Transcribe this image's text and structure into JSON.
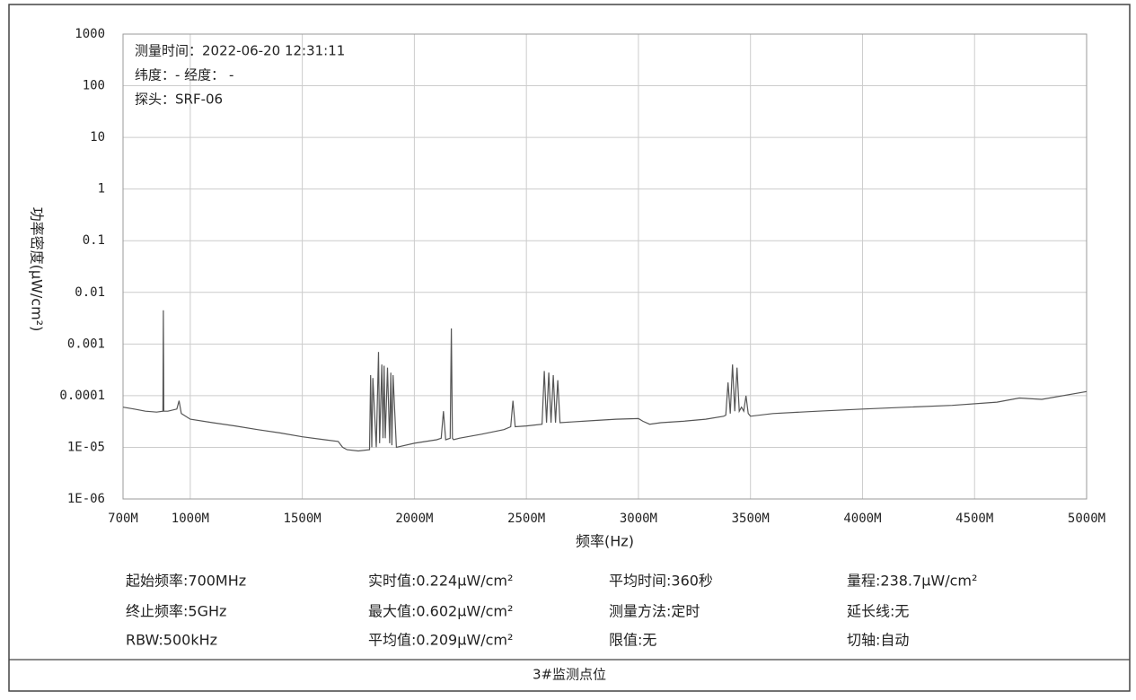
{
  "chart_data": {
    "type": "line",
    "annotations": [
      "测量时间：2022-06-20 12:31:11",
      "纬度：- 经度： -",
      "探头：SRF-06"
    ],
    "ylabel": "功率密度(μW/cm²)",
    "xlabel": "频率(Hz)",
    "x": [
      700,
      750,
      800,
      850,
      878,
      880,
      882,
      900,
      940,
      950,
      960,
      1000,
      1100,
      1200,
      1300,
      1400,
      1500,
      1600,
      1660,
      1680,
      1700,
      1750,
      1800,
      1805,
      1810,
      1815,
      1830,
      1840,
      1845,
      1855,
      1860,
      1865,
      1870,
      1880,
      1890,
      1895,
      1900,
      1905,
      1920,
      2000,
      2100,
      2120,
      2130,
      2140,
      2160,
      2165,
      2170,
      2175,
      2200,
      2300,
      2400,
      2430,
      2440,
      2450,
      2500,
      2570,
      2580,
      2590,
      2600,
      2610,
      2620,
      2630,
      2640,
      2650,
      2700,
      2800,
      2900,
      3000,
      3020,
      3050,
      3100,
      3200,
      3300,
      3380,
      3390,
      3400,
      3410,
      3420,
      3430,
      3440,
      3450,
      3460,
      3470,
      3480,
      3490,
      3500,
      3600,
      3800,
      4000,
      4200,
      4400,
      4600,
      4700,
      4800,
      5000
    ],
    "values": [
      6e-05,
      5.5e-05,
      5e-05,
      4.8e-05,
      5e-05,
      0.0045,
      5e-05,
      5e-05,
      5.5e-05,
      8e-05,
      4.5e-05,
      3.5e-05,
      3e-05,
      2.6e-05,
      2.2e-05,
      1.9e-05,
      1.6e-05,
      1.4e-05,
      1.3e-05,
      1e-05,
      9e-06,
      8.5e-06,
      9e-06,
      0.00025,
      1e-05,
      0.00022,
      1e-05,
      0.0007,
      1.2e-05,
      0.0004,
      1.5e-05,
      0.00038,
      1.5e-05,
      0.00035,
      1.2e-05,
      0.00028,
      1.1e-05,
      0.00025,
      1e-05,
      1.2e-05,
      1.4e-05,
      1.5e-05,
      5e-05,
      1.4e-05,
      1.5e-05,
      0.002,
      1.5e-05,
      1.4e-05,
      1.5e-05,
      1.8e-05,
      2.2e-05,
      2.5e-05,
      8e-05,
      2.5e-05,
      2.6e-05,
      2.8e-05,
      0.0003,
      3e-05,
      0.00028,
      3e-05,
      0.00025,
      3e-05,
      0.0002,
      3e-05,
      3.1e-05,
      3.3e-05,
      3.5e-05,
      3.6e-05,
      3.2e-05,
      2.8e-05,
      3e-05,
      3.2e-05,
      3.5e-05,
      4e-05,
      4.2e-05,
      0.00018,
      4.5e-05,
      0.0004,
      5e-05,
      0.00035,
      5e-05,
      6e-05,
      5e-05,
      0.0001,
      4.5e-05,
      4e-05,
      4.5e-05,
      5e-05,
      5.5e-05,
      6e-05,
      6.5e-05,
      7.5e-05,
      9e-05,
      8.5e-05,
      0.00012
    ],
    "color": "#555555",
    "xlim": [
      700,
      5000
    ],
    "xticks": [
      {
        "value": 700,
        "label": "700M"
      },
      {
        "value": 1000,
        "label": "1000M"
      },
      {
        "value": 1500,
        "label": "1500M"
      },
      {
        "value": 2000,
        "label": "2000M"
      },
      {
        "value": 2500,
        "label": "2500M"
      },
      {
        "value": 3000,
        "label": "3000M"
      },
      {
        "value": 3500,
        "label": "3500M"
      },
      {
        "value": 4000,
        "label": "4000M"
      },
      {
        "value": 4500,
        "label": "4500M"
      },
      {
        "value": 5000,
        "label": "5000M"
      }
    ],
    "ylim": [
      1e-06,
      1000
    ],
    "yscale": "log",
    "yticks": [
      1000,
      100,
      10,
      1,
      0.1,
      0.01,
      0.001,
      0.0001,
      {
        "value": 1e-05,
        "label": "1E-05"
      },
      {
        "value": 1e-06,
        "label": "1E-06"
      }
    ],
    "grid": true
  },
  "info": [
    [
      "起始频率:700MHz",
      "实时值:0.224μW/cm²",
      "平均时间:360秒",
      "量程:238.7μW/cm²"
    ],
    [
      "终止频率:5GHz",
      "最大值:0.602μW/cm²",
      "测量方法:定时",
      "延长线:无"
    ],
    [
      "RBW:500kHz",
      "平均值:0.209μW/cm²",
      "限值:无",
      "切轴:自动"
    ]
  ],
  "footer": "3#监测点位"
}
